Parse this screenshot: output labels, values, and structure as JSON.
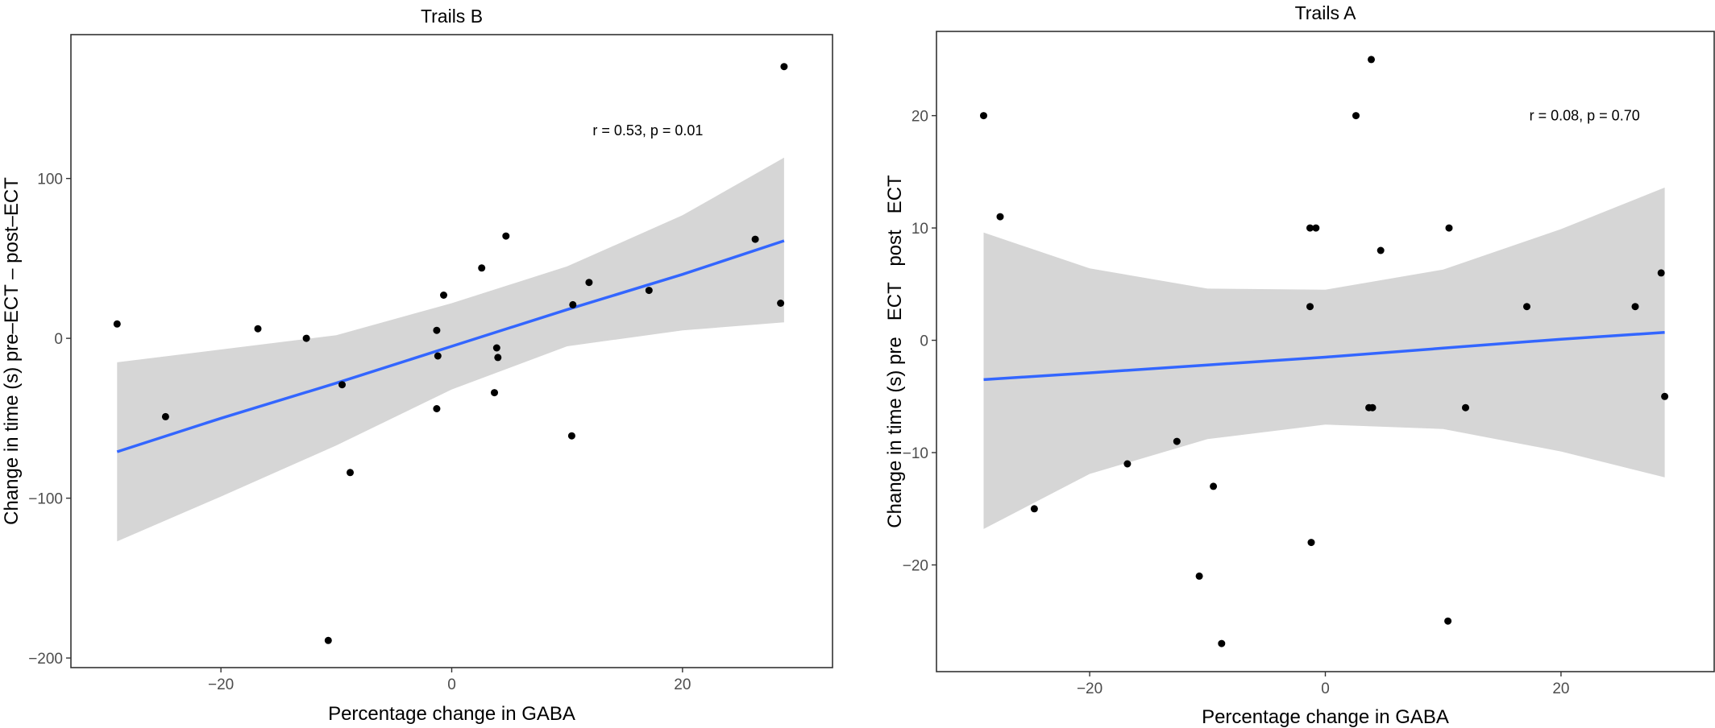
{
  "chart_data": [
    {
      "type": "scatter",
      "title": "Trails B",
      "xlabel": "Percentage change in GABA",
      "ylabel": "Change in time (s) pre–ECT – post–ECT",
      "xlim": [
        -33,
        33
      ],
      "ylim": [
        -206,
        190
      ],
      "xticks": [
        -20,
        0,
        20
      ],
      "yticks": [
        -200,
        -100,
        0,
        100
      ],
      "xtick_labels": [
        "−20",
        "0",
        "20"
      ],
      "ytick_labels": [
        "−200",
        "−100",
        "0",
        "100"
      ],
      "annotation": "r = 0.53, p = 0.01",
      "annotation_pos": [
        17,
        130
      ],
      "points": [
        {
          "x": -29,
          "y": 9
        },
        {
          "x": -24.8,
          "y": -49
        },
        {
          "x": -16.8,
          "y": 6
        },
        {
          "x": -12.6,
          "y": 0
        },
        {
          "x": -9.5,
          "y": -29
        },
        {
          "x": -8.8,
          "y": -84
        },
        {
          "x": -10.7,
          "y": -189
        },
        {
          "x": -1.3,
          "y": 5
        },
        {
          "x": -1.2,
          "y": -11
        },
        {
          "x": -1.3,
          "y": -44
        },
        {
          "x": -0.7,
          "y": 27
        },
        {
          "x": 2.6,
          "y": 44
        },
        {
          "x": 4.7,
          "y": 64
        },
        {
          "x": 3.9,
          "y": -6
        },
        {
          "x": 4.0,
          "y": -12
        },
        {
          "x": 3.7,
          "y": -34
        },
        {
          "x": 10.5,
          "y": 21
        },
        {
          "x": 11.9,
          "y": 35
        },
        {
          "x": 10.4,
          "y": -61
        },
        {
          "x": 17.1,
          "y": 30
        },
        {
          "x": 26.3,
          "y": 62
        },
        {
          "x": 28.5,
          "y": 22
        },
        {
          "x": 28.8,
          "y": 170
        }
      ],
      "fit": {
        "x": [
          -29,
          -20,
          -10,
          0,
          10,
          20,
          28.8
        ],
        "y": [
          -71,
          -50,
          -28,
          -5,
          18,
          40,
          61
        ],
        "lower": [
          -127,
          -99,
          -67,
          -32,
          -5,
          5,
          10
        ],
        "upper": [
          -15,
          -7,
          2,
          22,
          45,
          77,
          113
        ]
      },
      "fit_color": "#3366ff",
      "band_color": "#d6d6d6"
    },
    {
      "type": "scatter",
      "title": "Trails A",
      "xlabel": "Percentage change in GABA",
      "ylabel": "Change in time (s) pre   ECT   post   ECT",
      "xlim": [
        -33,
        33
      ],
      "ylim": [
        -29.5,
        27.5
      ],
      "xticks": [
        -20,
        0,
        20
      ],
      "yticks": [
        -20,
        -10,
        0,
        10,
        20
      ],
      "xtick_labels": [
        "−20",
        "0",
        "20"
      ],
      "ytick_labels": [
        "−20",
        "−10",
        "0",
        "10",
        "20"
      ],
      "annotation": "r = 0.08, p = 0.70",
      "annotation_pos": [
        22,
        20
      ],
      "points": [
        {
          "x": -29,
          "y": 20
        },
        {
          "x": -27.6,
          "y": 11
        },
        {
          "x": -24.7,
          "y": -15
        },
        {
          "x": -16.8,
          "y": -11
        },
        {
          "x": -12.6,
          "y": -9
        },
        {
          "x": -9.5,
          "y": -13
        },
        {
          "x": -10.7,
          "y": -21
        },
        {
          "x": -8.8,
          "y": -27
        },
        {
          "x": -1.3,
          "y": 10
        },
        {
          "x": -0.8,
          "y": 10
        },
        {
          "x": -1.3,
          "y": 3
        },
        {
          "x": -1.2,
          "y": -18
        },
        {
          "x": 2.6,
          "y": 20
        },
        {
          "x": 3.9,
          "y": 25
        },
        {
          "x": 4.7,
          "y": 8
        },
        {
          "x": 3.7,
          "y": -6
        },
        {
          "x": 4.0,
          "y": -6
        },
        {
          "x": 10.5,
          "y": 10
        },
        {
          "x": 11.9,
          "y": -6
        },
        {
          "x": 10.4,
          "y": -25
        },
        {
          "x": 17.1,
          "y": 3
        },
        {
          "x": 26.3,
          "y": 3
        },
        {
          "x": 28.5,
          "y": 6
        },
        {
          "x": 28.8,
          "y": -5
        }
      ],
      "fit": {
        "x": [
          -29,
          -20,
          -10,
          0,
          10,
          20,
          28.8
        ],
        "y": [
          -3.5,
          -2.9,
          -2.2,
          -1.5,
          -0.7,
          0.1,
          0.7
        ],
        "lower": [
          -16.8,
          -11.9,
          -8.8,
          -7.5,
          -7.9,
          -9.9,
          -12.2
        ],
        "upper": [
          9.6,
          6.4,
          4.6,
          4.5,
          6.3,
          9.9,
          13.6
        ]
      },
      "fit_color": "#3366ff",
      "band_color": "#d6d6d6"
    }
  ]
}
